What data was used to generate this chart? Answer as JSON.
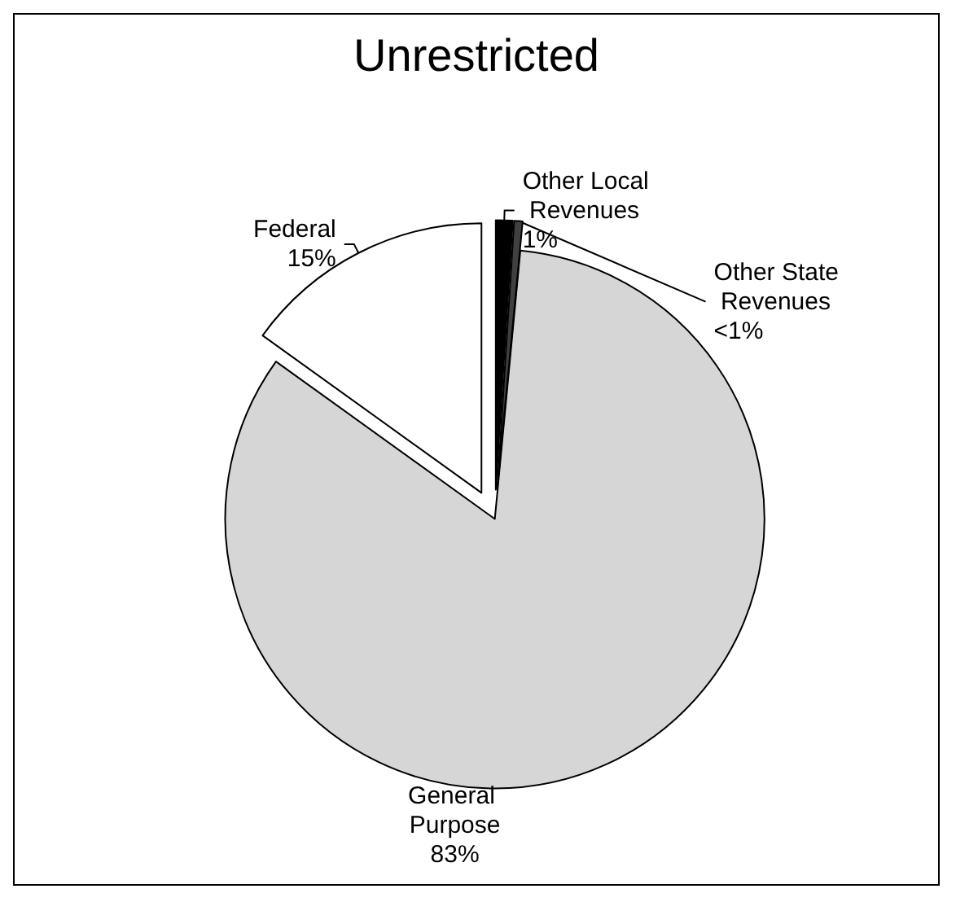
{
  "chart_data": {
    "type": "pie",
    "title": "Unrestricted",
    "categories": [
      "Other Local Revenues",
      "Other State Revenues",
      "General Purpose",
      "Federal"
    ],
    "values": [
      1,
      0.5,
      83,
      15
    ],
    "value_labels": [
      "1%",
      "<1%",
      "83%",
      "15%"
    ],
    "colors": [
      "#000000",
      "#404040",
      "#d6d6d6",
      "#ffffff"
    ],
    "legend": false
  }
}
